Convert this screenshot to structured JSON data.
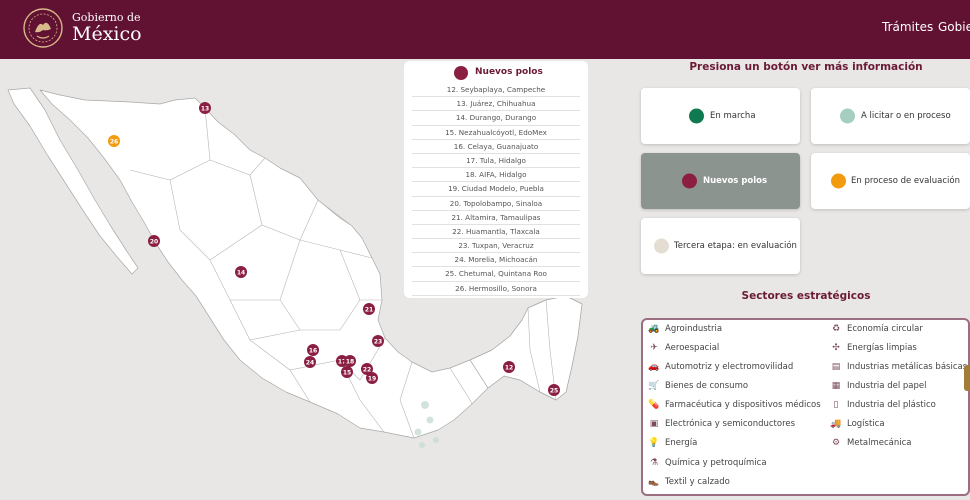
{
  "header": {
    "logo_line1": "Gobierno de",
    "logo_line2": "México",
    "nav": [
      "Trámites",
      "Gobie"
    ]
  },
  "colors": {
    "brand": "#611232",
    "new_poles": "#8a1f42",
    "en_marcha": "#0f7a52",
    "a_licitar": "#a6cdc1",
    "evaluacion": "#f29b0f",
    "tercera_etapa": "#e4ddd2"
  },
  "legend": {
    "title": "Nuevos polos",
    "items": [
      "12. Seybaplaya, Campeche",
      "13. Juárez, Chihuahua",
      "14. Durango, Durango",
      "15. Nezahualcóyotl, EdoMex",
      "16. Celaya, Guanajuato",
      "17. Tula, Hidalgo",
      "18. AIFA, Hidalgo",
      "19. Ciudad Modelo, Puebla",
      "20. Topolobampo, Sinaloa",
      "21. Altamira, Tamaulipas",
      "22. Huamantla, Tlaxcala",
      "23. Tuxpan, Veracruz",
      "24. Morelia, Michoacán",
      "25. Chetumal, Quintana Roo",
      "26. Hermosillo, Sonora"
    ]
  },
  "panel": {
    "title": "Presiona un botón ver más información",
    "buttons": [
      {
        "label": "En marcha",
        "color": "#0f7a52",
        "active": false
      },
      {
        "label": "A licitar o en proceso",
        "color": "#a6cdc1",
        "active": false
      },
      {
        "label": "Nuevos polos",
        "color": "#8a1f42",
        "active": true
      },
      {
        "label": "En proceso de evaluación",
        "color": "#f29b0f",
        "active": false
      },
      {
        "label": "Tercera etapa: en evaluación",
        "color": "#e4ddd2",
        "active": false
      }
    ]
  },
  "sectors": {
    "title": "Sectores estratégicos",
    "left": [
      {
        "label": "Agroindustria",
        "icon": "tractor-icon"
      },
      {
        "label": "Aeroespacial",
        "icon": "airplane-icon"
      },
      {
        "label": "Automotriz y electromovilidad",
        "icon": "car-icon"
      },
      {
        "label": "Bienes de consumo",
        "icon": "cart-icon"
      },
      {
        "label": "Farmacéutica y dispositivos médicos",
        "icon": "pill-icon"
      },
      {
        "label": "Electrónica y semiconductores",
        "icon": "chip-icon"
      },
      {
        "label": "Energía",
        "icon": "bulb-icon"
      },
      {
        "label": "Química y petroquímica",
        "icon": "flask-icon"
      },
      {
        "label": "Textil y calzado",
        "icon": "shoe-icon"
      }
    ],
    "right": [
      {
        "label": "Economía circular",
        "icon": "recycle-icon"
      },
      {
        "label": "Energías limpias",
        "icon": "wind-turbine-icon"
      },
      {
        "label": "Industrias metálicas básicas",
        "icon": "steel-icon"
      },
      {
        "label": "Industria del papel",
        "icon": "paper-icon"
      },
      {
        "label": "Industria del plástico",
        "icon": "bottle-icon"
      },
      {
        "label": "Logística",
        "icon": "truck-icon"
      },
      {
        "label": "Metalmecánica",
        "icon": "gear-icon"
      }
    ]
  },
  "markers": [
    "12",
    "13",
    "14",
    "15",
    "16",
    "17",
    "18",
    "19",
    "20",
    "21",
    "22",
    "23",
    "24",
    "25",
    "26"
  ]
}
